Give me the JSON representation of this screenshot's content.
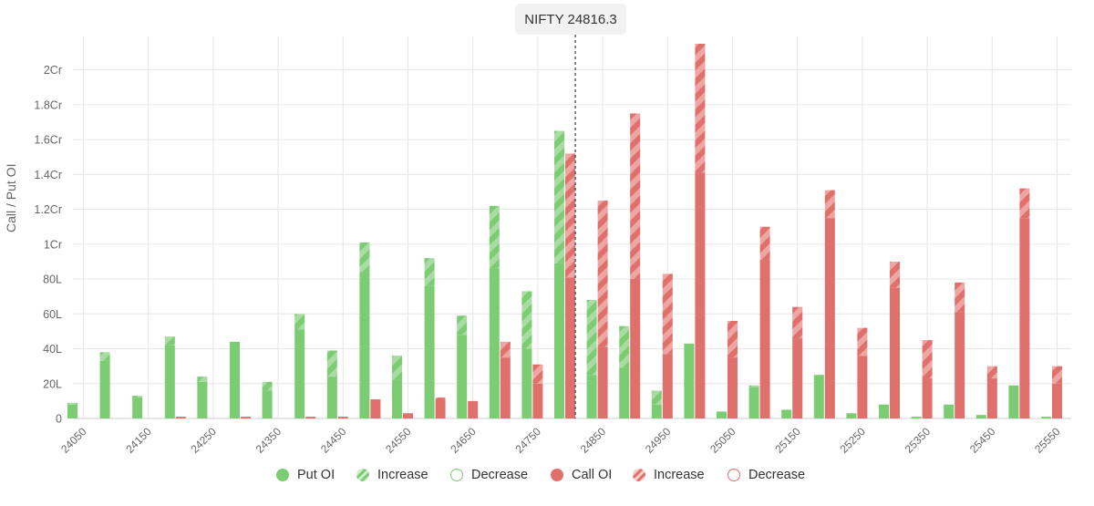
{
  "spot_label": "NIFTY 24816.3",
  "colors": {
    "put": "#7bcc72",
    "put_increase": "#a9dca2",
    "call": "#e0706b",
    "call_increase": "#efa6a3",
    "grid": "#e6e6e6",
    "spot_line": "#3a4a5a"
  },
  "legend": [
    {
      "label": "Put OI",
      "style": "solid",
      "color": "#7bcc72"
    },
    {
      "label": "Increase",
      "style": "hatched",
      "color": "#7bcc72"
    },
    {
      "label": "Decrease",
      "style": "outline",
      "color": "#7bcc72"
    },
    {
      "label": "Call OI",
      "style": "solid",
      "color": "#e0706b"
    },
    {
      "label": "Increase",
      "style": "hatched",
      "color": "#e0706b"
    },
    {
      "label": "Decrease",
      "style": "outline",
      "color": "#e0706b"
    }
  ],
  "chart_data": {
    "type": "bar",
    "ylabel": "Call / Put OI",
    "xlabel": "",
    "spot": 24816.3,
    "spot_label": "NIFTY 24816.3",
    "ylim": [
      0,
      21500000
    ],
    "yticks": [
      {
        "value": 0,
        "label": "0"
      },
      {
        "value": 2000000,
        "label": "20L"
      },
      {
        "value": 4000000,
        "label": "40L"
      },
      {
        "value": 6000000,
        "label": "60L"
      },
      {
        "value": 8000000,
        "label": "80L"
      },
      {
        "value": 10000000,
        "label": "1Cr"
      },
      {
        "value": 12000000,
        "label": "1.2Cr"
      },
      {
        "value": 14000000,
        "label": "1.4Cr"
      },
      {
        "value": 16000000,
        "label": "1.6Cr"
      },
      {
        "value": 18000000,
        "label": "1.8Cr"
      },
      {
        "value": 20000000,
        "label": "2Cr"
      }
    ],
    "xtick_labels": [
      "24050",
      "24150",
      "24250",
      "24350",
      "24450",
      "24550",
      "24650",
      "24750",
      "24850",
      "24950",
      "25050",
      "25150",
      "25250",
      "25350",
      "25450",
      "25550"
    ],
    "categories": [
      24050,
      24100,
      24150,
      24200,
      24250,
      24300,
      24350,
      24400,
      24450,
      24500,
      24550,
      24600,
      24650,
      24700,
      24750,
      24800,
      24850,
      24900,
      24950,
      25000,
      25050,
      25100,
      25150,
      25200,
      25250,
      25300,
      25350,
      25400,
      25450,
      25500,
      25550
    ],
    "grid": true,
    "legend_position": "bottom",
    "series": [
      {
        "name": "Put OI",
        "values": [
          800000,
          3300000,
          1200000,
          4200000,
          2100000,
          4400000,
          1600000,
          5100000,
          2400000,
          8400000,
          2200000,
          7600000,
          4800000,
          8600000,
          4000000,
          8900000,
          2500000,
          2900000,
          800000,
          4300000,
          400000,
          1800000,
          500000,
          2500000,
          300000,
          800000,
          100000,
          800000,
          200000,
          1900000,
          100000
        ]
      },
      {
        "name": "Put OI Increase",
        "values": [
          100000,
          500000,
          100000,
          500000,
          300000,
          0,
          500000,
          900000,
          1500000,
          1700000,
          1400000,
          1600000,
          1100000,
          3600000,
          3300000,
          7600000,
          4300000,
          2400000,
          800000,
          0,
          0,
          100000,
          0,
          0,
          0,
          0,
          0,
          0,
          0,
          0,
          0
        ]
      },
      {
        "name": "Call OI",
        "values": [
          0,
          0,
          0,
          100000,
          0,
          100000,
          0,
          100000,
          100000,
          1100000,
          300000,
          1100000,
          1000000,
          3500000,
          2000000,
          8100000,
          4100000,
          8000000,
          3700000,
          14100000,
          3500000,
          9100000,
          4600000,
          11500000,
          3600000,
          7500000,
          2300000,
          6100000,
          2300000,
          11500000,
          2000000
        ]
      },
      {
        "name": "Call OI Increase",
        "values": [
          0,
          0,
          0,
          0,
          0,
          0,
          0,
          0,
          0,
          0,
          0,
          100000,
          0,
          900000,
          1100000,
          7100000,
          8400000,
          9500000,
          4600000,
          7500000,
          2100000,
          1900000,
          1800000,
          1600000,
          1600000,
          1500000,
          2200000,
          1700000,
          700000,
          1700000,
          1000000
        ]
      }
    ]
  }
}
